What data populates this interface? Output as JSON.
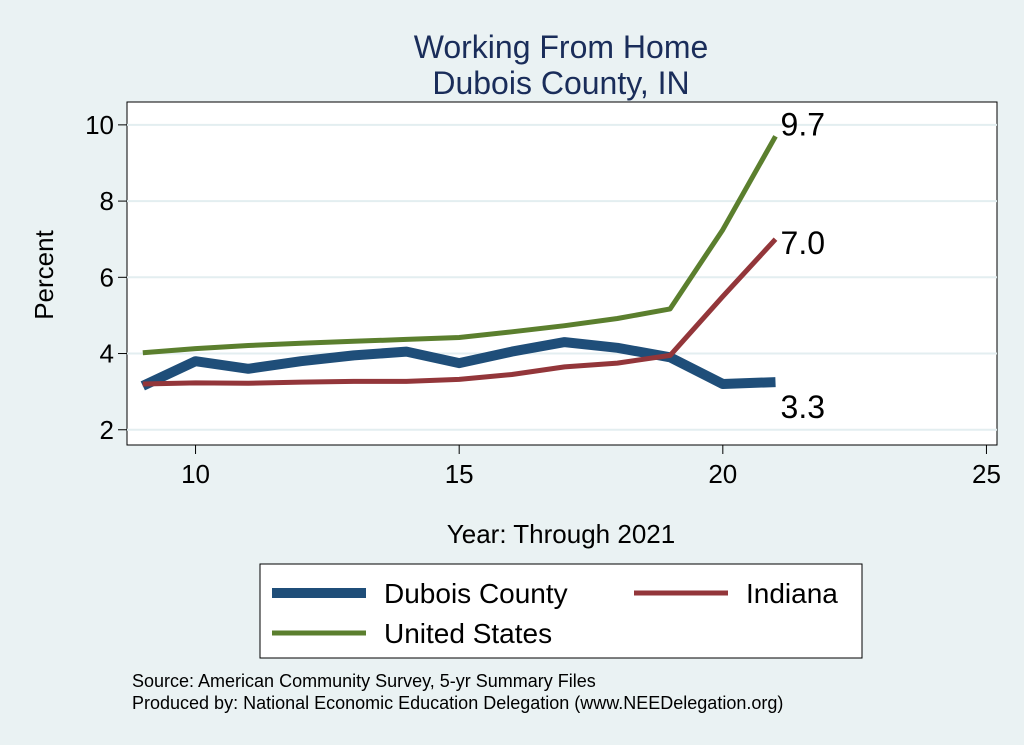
{
  "chart_data": {
    "type": "line",
    "title": [
      "Working From Home",
      "Dubois County, IN"
    ],
    "xlabel": "Year: Through 2021",
    "ylabel": "Percent",
    "xlim": [
      8.7,
      25.2
    ],
    "ylim": [
      1.6,
      10.6
    ],
    "xticks": [
      10,
      15,
      20,
      25
    ],
    "yticks": [
      2,
      4,
      6,
      8,
      10
    ],
    "grid": "horizontal",
    "legend_position": "bottom",
    "x": [
      9,
      10,
      11,
      12,
      13,
      14,
      15,
      16,
      17,
      18,
      19,
      20,
      21
    ],
    "series": [
      {
        "name": "Dubois County",
        "color": "#1f4e79",
        "values": [
          3.15,
          3.8,
          3.6,
          3.8,
          3.95,
          4.05,
          3.75,
          4.05,
          4.3,
          4.15,
          3.9,
          3.2,
          3.25
        ],
        "end_label": "3.3"
      },
      {
        "name": "Indiana",
        "color": "#93363a",
        "values": [
          3.2,
          3.23,
          3.22,
          3.25,
          3.27,
          3.27,
          3.32,
          3.45,
          3.65,
          3.75,
          3.95,
          5.5,
          7.0
        ],
        "end_label": "7.0"
      },
      {
        "name": "United States",
        "color": "#5b7f2e",
        "values": [
          4.02,
          4.13,
          4.21,
          4.27,
          4.32,
          4.37,
          4.42,
          4.57,
          4.73,
          4.92,
          5.17,
          7.25,
          9.7
        ],
        "end_label": "9.7"
      }
    ]
  },
  "legend": {
    "dubois": "Dubois County",
    "indiana": "Indiana",
    "us": "United States"
  },
  "source_lines": [
    "Source: American Community Survey, 5-yr Summary Files",
    "Produced by: National Economic Education Delegation (www.NEEDelegation.org)"
  ]
}
